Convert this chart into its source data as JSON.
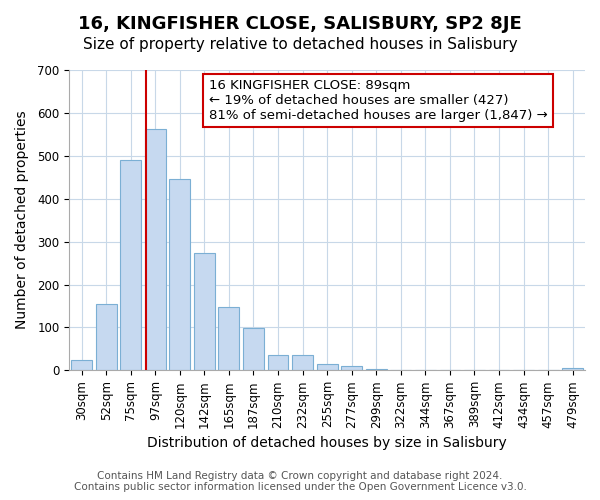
{
  "title": "16, KINGFISHER CLOSE, SALISBURY, SP2 8JE",
  "subtitle": "Size of property relative to detached houses in Salisbury",
  "xlabel": "Distribution of detached houses by size in Salisbury",
  "ylabel": "Number of detached properties",
  "bar_labels": [
    "30sqm",
    "52sqm",
    "75sqm",
    "97sqm",
    "120sqm",
    "142sqm",
    "165sqm",
    "187sqm",
    "210sqm",
    "232sqm",
    "255sqm",
    "277sqm",
    "299sqm",
    "322sqm",
    "344sqm",
    "367sqm",
    "389sqm",
    "412sqm",
    "434sqm",
    "457sqm",
    "479sqm"
  ],
  "bar_values": [
    25,
    155,
    490,
    563,
    447,
    273,
    147,
    98,
    36,
    35,
    14,
    10,
    4,
    0,
    0,
    0,
    0,
    0,
    0,
    0,
    5
  ],
  "bar_color": "#c6d9f0",
  "bar_edge_color": "#7bafd4",
  "vline_color": "#cc0000",
  "annotation_text": "16 KINGFISHER CLOSE: 89sqm\n← 19% of detached houses are smaller (427)\n81% of semi-detached houses are larger (1,847) →",
  "annotation_box_color": "#ffffff",
  "annotation_box_edge_color": "#cc0000",
  "ylim": [
    0,
    700
  ],
  "yticks": [
    0,
    100,
    200,
    300,
    400,
    500,
    600,
    700
  ],
  "footer_line1": "Contains HM Land Registry data © Crown copyright and database right 2024.",
  "footer_line2": "Contains public sector information licensed under the Open Government Licence v3.0.",
  "bg_color": "#ffffff",
  "grid_color": "#c8d8e8",
  "title_fontsize": 13,
  "subtitle_fontsize": 11,
  "axis_label_fontsize": 10,
  "tick_fontsize": 8.5,
  "annotation_fontsize": 9.5,
  "footer_fontsize": 7.5
}
